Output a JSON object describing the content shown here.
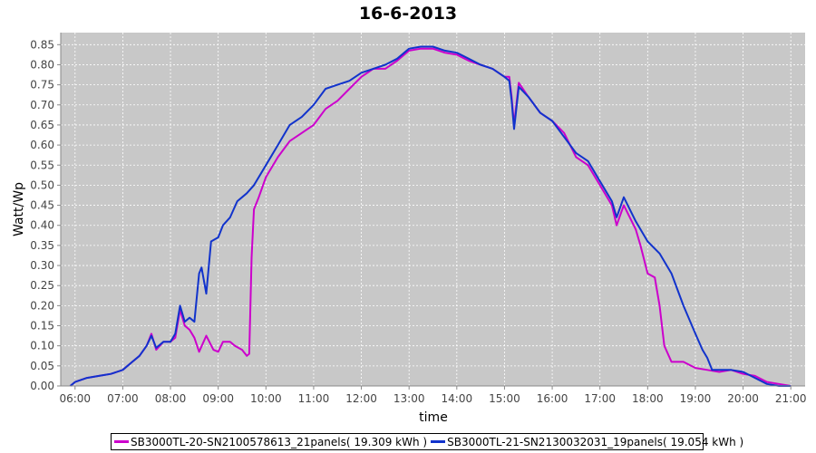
{
  "chart_data": {
    "type": "line",
    "title": "16-6-2013",
    "xlabel": "time",
    "ylabel": "Watt/Wp",
    "xlim": [
      5.7,
      21.3
    ],
    "ylim": [
      0,
      0.88
    ],
    "x_ticks": [
      "06:00",
      "07:00",
      "08:00",
      "09:00",
      "10:00",
      "11:00",
      "12:00",
      "13:00",
      "14:00",
      "15:00",
      "16:00",
      "17:00",
      "18:00",
      "19:00",
      "20:00",
      "21:00"
    ],
    "y_ticks": [
      "0.00",
      "0.05",
      "0.10",
      "0.15",
      "0.20",
      "0.25",
      "0.30",
      "0.35",
      "0.40",
      "0.45",
      "0.50",
      "0.55",
      "0.60",
      "0.65",
      "0.70",
      "0.75",
      "0.80",
      "0.85"
    ],
    "grid": true,
    "legend": "bottom",
    "background": "#c8c8c8",
    "series": [
      {
        "name": "SB3000TL-20-SN2100578613_21panels( 19.309 kWh )",
        "color": "#cc00cc",
        "points": [
          [
            5.9,
            0.0
          ],
          [
            6.0,
            0.01
          ],
          [
            6.25,
            0.02
          ],
          [
            6.5,
            0.025
          ],
          [
            6.75,
            0.03
          ],
          [
            7.0,
            0.04
          ],
          [
            7.2,
            0.06
          ],
          [
            7.35,
            0.075
          ],
          [
            7.5,
            0.1
          ],
          [
            7.6,
            0.13
          ],
          [
            7.7,
            0.09
          ],
          [
            7.85,
            0.11
          ],
          [
            8.0,
            0.11
          ],
          [
            8.1,
            0.12
          ],
          [
            8.2,
            0.19
          ],
          [
            8.3,
            0.15
          ],
          [
            8.4,
            0.14
          ],
          [
            8.5,
            0.12
          ],
          [
            8.6,
            0.085
          ],
          [
            8.75,
            0.125
          ],
          [
            8.9,
            0.09
          ],
          [
            9.0,
            0.085
          ],
          [
            9.1,
            0.11
          ],
          [
            9.25,
            0.11
          ],
          [
            9.35,
            0.1
          ],
          [
            9.5,
            0.09
          ],
          [
            9.6,
            0.075
          ],
          [
            9.65,
            0.08
          ],
          [
            9.7,
            0.32
          ],
          [
            9.75,
            0.44
          ],
          [
            9.85,
            0.47
          ],
          [
            10.0,
            0.52
          ],
          [
            10.25,
            0.57
          ],
          [
            10.5,
            0.61
          ],
          [
            10.75,
            0.63
          ],
          [
            11.0,
            0.65
          ],
          [
            11.25,
            0.69
          ],
          [
            11.5,
            0.71
          ],
          [
            11.75,
            0.74
          ],
          [
            12.0,
            0.77
          ],
          [
            12.25,
            0.79
          ],
          [
            12.5,
            0.79
          ],
          [
            12.75,
            0.81
          ],
          [
            13.0,
            0.835
          ],
          [
            13.25,
            0.84
          ],
          [
            13.5,
            0.84
          ],
          [
            13.75,
            0.83
          ],
          [
            14.0,
            0.825
          ],
          [
            14.25,
            0.81
          ],
          [
            14.5,
            0.8
          ],
          [
            14.75,
            0.79
          ],
          [
            15.0,
            0.77
          ],
          [
            15.1,
            0.77
          ],
          [
            15.15,
            0.72
          ],
          [
            15.2,
            0.65
          ],
          [
            15.3,
            0.755
          ],
          [
            15.5,
            0.72
          ],
          [
            15.75,
            0.68
          ],
          [
            16.0,
            0.66
          ],
          [
            16.25,
            0.63
          ],
          [
            16.5,
            0.57
          ],
          [
            16.75,
            0.55
          ],
          [
            17.0,
            0.5
          ],
          [
            17.25,
            0.45
          ],
          [
            17.35,
            0.4
          ],
          [
            17.5,
            0.45
          ],
          [
            17.75,
            0.39
          ],
          [
            17.85,
            0.35
          ],
          [
            18.0,
            0.28
          ],
          [
            18.15,
            0.27
          ],
          [
            18.25,
            0.2
          ],
          [
            18.35,
            0.1
          ],
          [
            18.5,
            0.06
          ],
          [
            18.75,
            0.06
          ],
          [
            19.0,
            0.045
          ],
          [
            19.25,
            0.04
          ],
          [
            19.5,
            0.035
          ],
          [
            19.75,
            0.04
          ],
          [
            20.0,
            0.03
          ],
          [
            20.25,
            0.025
          ],
          [
            20.5,
            0.01
          ],
          [
            20.75,
            0.005
          ],
          [
            21.0,
            0.0
          ]
        ]
      },
      {
        "name": "SB3000TL-21-SN2130032031_19panels( 19.054 kWh )",
        "color": "#1133cc",
        "points": [
          [
            5.9,
            0.0
          ],
          [
            6.0,
            0.01
          ],
          [
            6.25,
            0.02
          ],
          [
            6.5,
            0.025
          ],
          [
            6.75,
            0.03
          ],
          [
            7.0,
            0.04
          ],
          [
            7.2,
            0.06
          ],
          [
            7.35,
            0.075
          ],
          [
            7.5,
            0.1
          ],
          [
            7.6,
            0.125
          ],
          [
            7.7,
            0.095
          ],
          [
            7.85,
            0.11
          ],
          [
            8.0,
            0.11
          ],
          [
            8.1,
            0.13
          ],
          [
            8.2,
            0.2
          ],
          [
            8.3,
            0.16
          ],
          [
            8.4,
            0.17
          ],
          [
            8.5,
            0.16
          ],
          [
            8.6,
            0.28
          ],
          [
            8.65,
            0.295
          ],
          [
            8.75,
            0.23
          ],
          [
            8.85,
            0.36
          ],
          [
            9.0,
            0.37
          ],
          [
            9.1,
            0.4
          ],
          [
            9.25,
            0.42
          ],
          [
            9.4,
            0.46
          ],
          [
            9.5,
            0.47
          ],
          [
            9.6,
            0.48
          ],
          [
            9.75,
            0.5
          ],
          [
            10.0,
            0.55
          ],
          [
            10.25,
            0.6
          ],
          [
            10.5,
            0.65
          ],
          [
            10.75,
            0.67
          ],
          [
            11.0,
            0.7
          ],
          [
            11.25,
            0.74
          ],
          [
            11.5,
            0.75
          ],
          [
            11.75,
            0.76
          ],
          [
            12.0,
            0.78
          ],
          [
            12.25,
            0.79
          ],
          [
            12.5,
            0.8
          ],
          [
            12.75,
            0.815
          ],
          [
            13.0,
            0.84
          ],
          [
            13.25,
            0.845
          ],
          [
            13.5,
            0.845
          ],
          [
            13.75,
            0.835
          ],
          [
            14.0,
            0.83
          ],
          [
            14.25,
            0.815
          ],
          [
            14.5,
            0.8
          ],
          [
            14.75,
            0.79
          ],
          [
            15.0,
            0.77
          ],
          [
            15.1,
            0.76
          ],
          [
            15.15,
            0.71
          ],
          [
            15.2,
            0.64
          ],
          [
            15.3,
            0.745
          ],
          [
            15.5,
            0.72
          ],
          [
            15.75,
            0.68
          ],
          [
            16.0,
            0.66
          ],
          [
            16.25,
            0.62
          ],
          [
            16.5,
            0.58
          ],
          [
            16.75,
            0.56
          ],
          [
            17.0,
            0.51
          ],
          [
            17.25,
            0.46
          ],
          [
            17.35,
            0.42
          ],
          [
            17.5,
            0.47
          ],
          [
            17.75,
            0.41
          ],
          [
            18.0,
            0.36
          ],
          [
            18.25,
            0.33
          ],
          [
            18.5,
            0.28
          ],
          [
            18.75,
            0.2
          ],
          [
            19.0,
            0.13
          ],
          [
            19.15,
            0.09
          ],
          [
            19.25,
            0.07
          ],
          [
            19.35,
            0.04
          ],
          [
            19.5,
            0.04
          ],
          [
            19.75,
            0.04
          ],
          [
            20.0,
            0.035
          ],
          [
            20.25,
            0.02
          ],
          [
            20.5,
            0.005
          ],
          [
            20.75,
            0.0
          ],
          [
            21.0,
            0.0
          ]
        ]
      }
    ]
  }
}
